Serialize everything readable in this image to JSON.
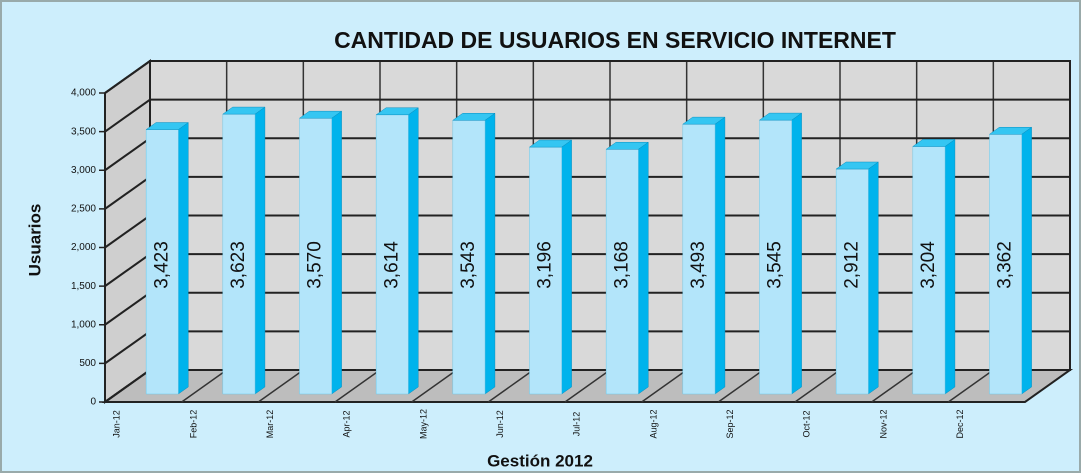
{
  "chart_data": {
    "type": "bar3d",
    "title": "CANTIDAD DE USUARIOS EN SERVICIO INTERNET",
    "y_label": "Usuarios",
    "x_label": "Gestión 2012",
    "categories": [
      "Jan-12",
      "Feb-12",
      "Mar-12",
      "Apr-12",
      "May-12",
      "Jun-12",
      "Jul-12",
      "Aug-12",
      "Sep-12",
      "Oct-12",
      "Nov-12",
      "Dec-12"
    ],
    "values": [
      3423,
      3623,
      3570,
      3614,
      3543,
      3196,
      3168,
      3493,
      3545,
      2912,
      3204,
      3362
    ],
    "value_labels": [
      "3,423",
      "3,623",
      "3,570",
      "3,614",
      "3,543",
      "3,196",
      "3,168",
      "3,493",
      "3,545",
      "2,912",
      "3,204",
      "3,362"
    ],
    "color": "#b3e5fa",
    "ylim": [
      0,
      4000
    ],
    "yticks": [
      0,
      500,
      {
        "value": 1000,
        "label": "1,000"
      },
      {
        "value": 1500,
        "label": "1,500"
      },
      {
        "value": 2000,
        "label": "2,000"
      },
      {
        "value": 2500,
        "label": "2,500"
      },
      {
        "value": 3000,
        "label": "3,000"
      },
      {
        "value": 3500,
        "label": "3,500"
      },
      {
        "value": 4000,
        "label": "4,000"
      }
    ],
    "grid": true
  }
}
